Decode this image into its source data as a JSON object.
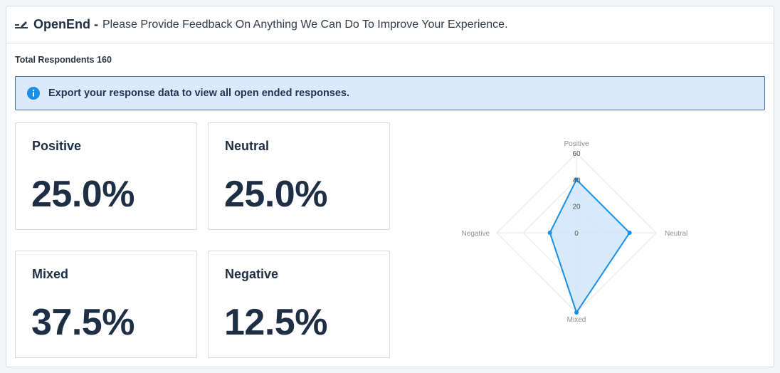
{
  "header": {
    "type_label": "OpenEnd -",
    "question": "Please Provide Feedback On Anything We Can Do To Improve Your Experience.",
    "icon": "open-end-icon"
  },
  "respondents": "Total Respondents 160",
  "banner": {
    "icon": "info-icon",
    "text": "Export your response data to view all open ended responses."
  },
  "cards": [
    {
      "label": "Positive",
      "value": "25.0%"
    },
    {
      "label": "Neutral",
      "value": "25.0%"
    },
    {
      "label": "Mixed",
      "value": "37.5%"
    },
    {
      "label": "Negative",
      "value": "12.5%"
    }
  ],
  "colors": {
    "accent": "#1a8fe3",
    "fill": "#cfe6fb",
    "banner_bg": "#dbe9fb",
    "text_dark": "#1e2f45"
  },
  "chart_data": {
    "type": "radar",
    "axes": [
      "Positive",
      "Neutral",
      "Mixed",
      "Negative"
    ],
    "values": [
      40,
      40,
      60,
      20
    ],
    "ticks": [
      "0",
      "20",
      "40",
      "60"
    ],
    "range": [
      0,
      60
    ]
  }
}
